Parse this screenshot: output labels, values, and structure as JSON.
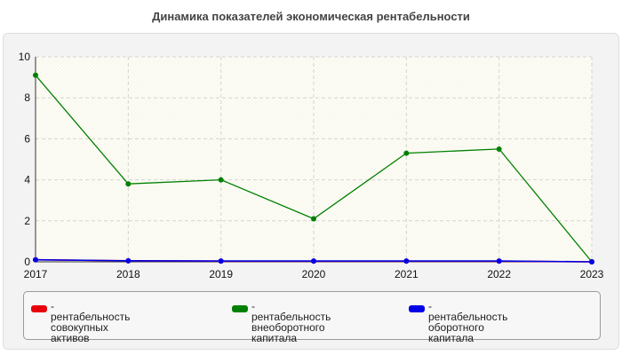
{
  "chart_data": {
    "type": "line",
    "title": "Динамика показателей экономическая рентабельности",
    "x": [
      "2017",
      "2018",
      "2019",
      "2020",
      "2021",
      "2022",
      "2023"
    ],
    "ylim": [
      0,
      10
    ],
    "yticks": [
      "0",
      "2",
      "4",
      "6",
      "8",
      "10"
    ],
    "grid": true,
    "legend_position": "bottom",
    "series": [
      {
        "name": "- рентабельность совокупных\nактивов",
        "color": "#e8000b",
        "values": [
          0.1,
          0.05,
          0.03,
          0.03,
          0.03,
          0.03,
          0.0
        ]
      },
      {
        "name": "- рентабельность\nвнеоборотного капитала",
        "color": "#008000",
        "values": [
          9.1,
          3.8,
          4.0,
          2.1,
          5.3,
          5.5,
          0.0
        ]
      },
      {
        "name": "- рентабельность оборотного\nкапитала",
        "color": "#0000e8",
        "values": [
          0.1,
          0.05,
          0.04,
          0.04,
          0.04,
          0.04,
          0.0
        ]
      }
    ]
  }
}
